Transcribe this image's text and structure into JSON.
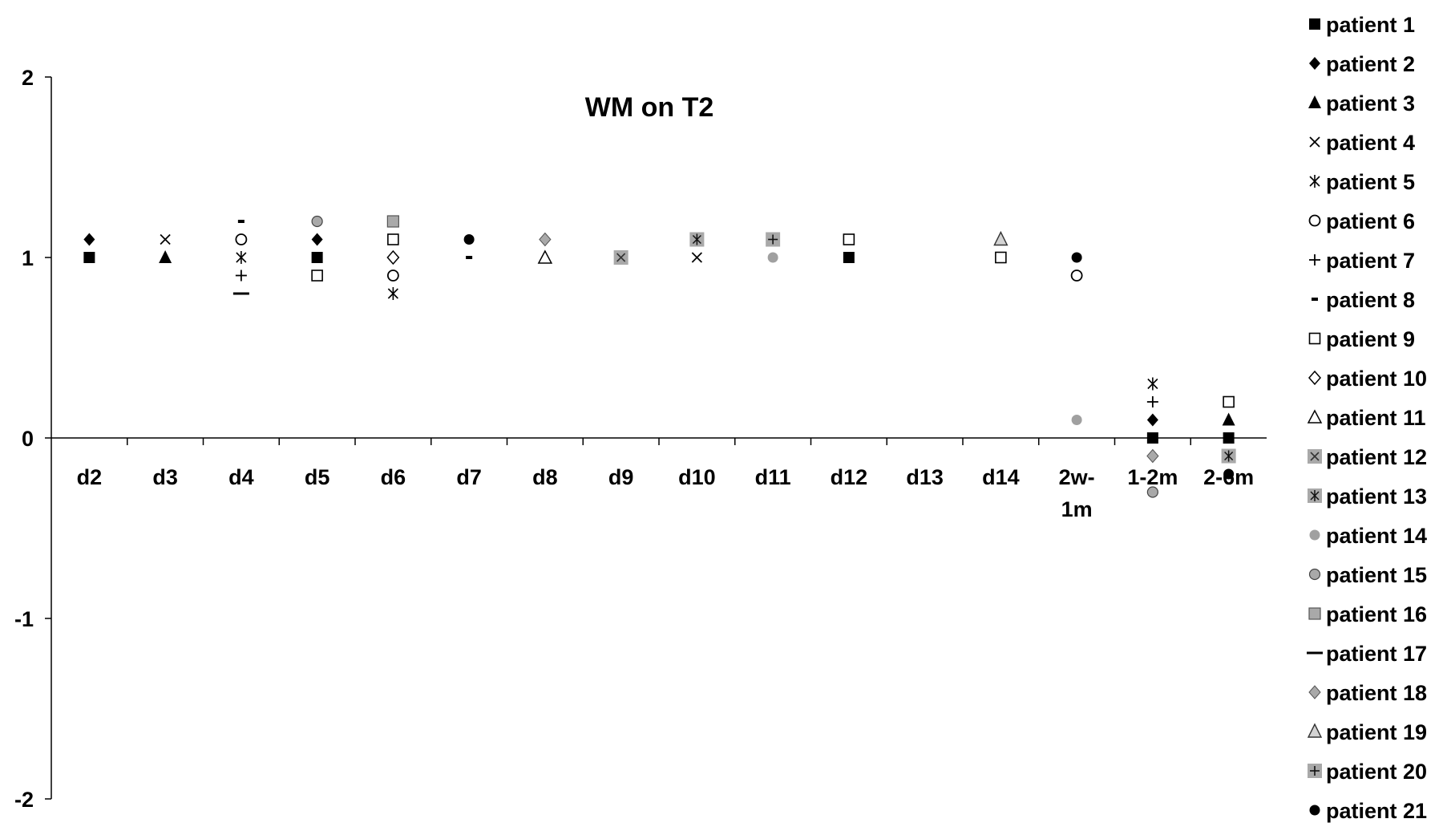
{
  "chart_data": {
    "type": "scatter",
    "title": "WM on T2",
    "xlabel": "",
    "ylabel": "",
    "ylim": [
      -2,
      2
    ],
    "yticks": [
      "-2",
      "-1",
      "0",
      "1",
      "2"
    ],
    "categories": [
      "d2",
      "d3",
      "d4",
      "d5",
      "d6",
      "d7",
      "d8",
      "d9",
      "d10",
      "d11",
      "d12",
      "d13",
      "d14",
      "2w-1m",
      "1-2m",
      "2-6m"
    ],
    "category_labels": [
      [
        "d2"
      ],
      [
        "d3"
      ],
      [
        "d4"
      ],
      [
        "d5"
      ],
      [
        "d6"
      ],
      [
        "d7"
      ],
      [
        "d8"
      ],
      [
        "d9"
      ],
      [
        "d10"
      ],
      [
        "d11"
      ],
      [
        "d12"
      ],
      [
        "d13"
      ],
      [
        "d14"
      ],
      [
        "2w-",
        "1m"
      ],
      [
        "1-2m"
      ],
      [
        "2-6m"
      ]
    ],
    "grid": false,
    "legend_position": "right",
    "series": [
      {
        "name": "patient 1",
        "marker": "square-filled",
        "color": "#000000",
        "points": [
          [
            "d2",
            1.0
          ],
          [
            "d5",
            1.0
          ],
          [
            "d12",
            1.0
          ],
          [
            "1-2m",
            0.0
          ],
          [
            "2-6m",
            0.0
          ]
        ]
      },
      {
        "name": "patient 2",
        "marker": "diamond-filled",
        "color": "#000000",
        "points": [
          [
            "d2",
            1.1
          ],
          [
            "d5",
            1.1
          ],
          [
            "1-2m",
            0.1
          ]
        ]
      },
      {
        "name": "patient 3",
        "marker": "triangle-filled",
        "color": "#000000",
        "points": [
          [
            "d3",
            1.0
          ],
          [
            "2-6m",
            0.1
          ]
        ]
      },
      {
        "name": "patient 4",
        "marker": "x",
        "color": "#000000",
        "points": [
          [
            "d3",
            1.1
          ],
          [
            "d10",
            1.0
          ]
        ]
      },
      {
        "name": "patient 5",
        "marker": "asterisk",
        "color": "#000000",
        "points": [
          [
            "d4",
            1.0
          ],
          [
            "d6",
            0.8
          ],
          [
            "1-2m",
            0.3
          ]
        ]
      },
      {
        "name": "patient 6",
        "marker": "circle-open",
        "color": "#000000",
        "points": [
          [
            "d4",
            1.1
          ],
          [
            "d6",
            0.9
          ],
          [
            "2w-1m",
            0.9
          ]
        ]
      },
      {
        "name": "patient 7",
        "marker": "plus",
        "color": "#000000",
        "points": [
          [
            "d4",
            0.9
          ],
          [
            "1-2m",
            0.2
          ]
        ]
      },
      {
        "name": "patient 8",
        "marker": "short-dash",
        "color": "#000000",
        "points": [
          [
            "d4",
            1.2
          ],
          [
            "d7",
            1.0
          ]
        ]
      },
      {
        "name": "patient 9",
        "marker": "square-open",
        "color": "#000000",
        "points": [
          [
            "d5",
            0.9
          ],
          [
            "d6",
            1.1
          ],
          [
            "d12",
            1.1
          ],
          [
            "d14",
            1.0
          ],
          [
            "2-6m",
            0.2
          ]
        ]
      },
      {
        "name": "patient 10",
        "marker": "diamond-open",
        "color": "#000000",
        "points": [
          [
            "d6",
            1.0
          ]
        ]
      },
      {
        "name": "patient 11",
        "marker": "triangle-open",
        "color": "#000000",
        "points": [
          [
            "d8",
            1.0
          ]
        ]
      },
      {
        "name": "patient 12",
        "marker": "square-gray-x",
        "color": "#a9a9a9",
        "points": [
          [
            "d9",
            1.0
          ]
        ]
      },
      {
        "name": "patient 13",
        "marker": "square-gray-asterisk",
        "color": "#a9a9a9",
        "points": [
          [
            "d10",
            1.1
          ],
          [
            "2-6m",
            -0.1
          ]
        ]
      },
      {
        "name": "patient 14",
        "marker": "circle-gray",
        "color": "#a0a0a0",
        "points": [
          [
            "d11",
            1.0
          ],
          [
            "2w-1m",
            0.1
          ]
        ]
      },
      {
        "name": "patient 15",
        "marker": "circle-gray-outlined",
        "color": "#a9a9a9",
        "points": [
          [
            "d5",
            1.2
          ],
          [
            "1-2m",
            -0.3
          ]
        ]
      },
      {
        "name": "patient 16",
        "marker": "square-gray-outlined",
        "color": "#a9a9a9",
        "points": [
          [
            "d6",
            1.2
          ]
        ]
      },
      {
        "name": "patient 17",
        "marker": "long-dash",
        "color": "#000000",
        "points": [
          [
            "d4",
            0.8
          ]
        ]
      },
      {
        "name": "patient 18",
        "marker": "diamond-gray",
        "color": "#a9a9a9",
        "points": [
          [
            "d8",
            1.1
          ],
          [
            "1-2m",
            -0.1
          ]
        ]
      },
      {
        "name": "patient 19",
        "marker": "triangle-gray",
        "color": "#d3d3d3",
        "points": [
          [
            "d14",
            1.1
          ]
        ]
      },
      {
        "name": "patient 20",
        "marker": "square-gray-plus",
        "color": "#a9a9a9",
        "points": [
          [
            "d11",
            1.1
          ]
        ]
      },
      {
        "name": "patient 21",
        "marker": "circle-filled",
        "color": "#000000",
        "points": [
          [
            "d7",
            1.1
          ],
          [
            "2w-1m",
            1.0
          ],
          [
            "2-6m",
            -0.2
          ]
        ]
      }
    ]
  }
}
